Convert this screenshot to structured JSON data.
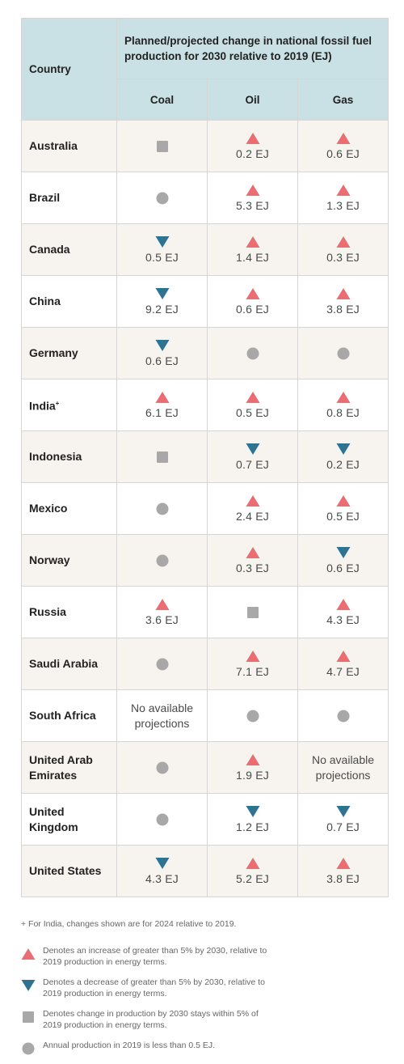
{
  "colors": {
    "increase": "#ec6d71",
    "decrease": "#2e7391",
    "within": "#a8a8a8",
    "low": "#a8a8a8",
    "header_bg": "#c9e0e4",
    "row_alt_bg": "#f7f3ee"
  },
  "header": {
    "country": "Country",
    "group": "Planned/projected change in national fossil fuel production for 2030 relative to 2019 (EJ)",
    "coal": "Coal",
    "oil": "Oil",
    "gas": "Gas"
  },
  "rows": [
    {
      "name": "Australia",
      "mark": "",
      "coal": {
        "sym": "square",
        "val": ""
      },
      "oil": {
        "sym": "up",
        "val": "0.2 EJ"
      },
      "gas": {
        "sym": "up",
        "val": "0.6 EJ"
      }
    },
    {
      "name": "Brazil",
      "mark": "",
      "coal": {
        "sym": "circle",
        "val": ""
      },
      "oil": {
        "sym": "up",
        "val": "5.3 EJ"
      },
      "gas": {
        "sym": "up",
        "val": "1.3 EJ"
      }
    },
    {
      "name": "Canada",
      "mark": "",
      "coal": {
        "sym": "down",
        "val": "0.5 EJ"
      },
      "oil": {
        "sym": "up",
        "val": "1.4 EJ"
      },
      "gas": {
        "sym": "up",
        "val": "0.3 EJ"
      }
    },
    {
      "name": "China",
      "mark": "",
      "coal": {
        "sym": "down",
        "val": "9.2 EJ"
      },
      "oil": {
        "sym": "up",
        "val": "0.6 EJ"
      },
      "gas": {
        "sym": "up",
        "val": "3.8 EJ"
      }
    },
    {
      "name": "Germany",
      "mark": "",
      "coal": {
        "sym": "down",
        "val": "0.6 EJ"
      },
      "oil": {
        "sym": "circle",
        "val": ""
      },
      "gas": {
        "sym": "circle",
        "val": ""
      }
    },
    {
      "name": "India",
      "mark": "+",
      "coal": {
        "sym": "up",
        "val": "6.1 EJ"
      },
      "oil": {
        "sym": "up",
        "val": "0.5 EJ"
      },
      "gas": {
        "sym": "up",
        "val": "0.8 EJ"
      }
    },
    {
      "name": "Indonesia",
      "mark": "",
      "coal": {
        "sym": "square",
        "val": ""
      },
      "oil": {
        "sym": "down",
        "val": "0.7 EJ"
      },
      "gas": {
        "sym": "down",
        "val": "0.2 EJ"
      }
    },
    {
      "name": "Mexico",
      "mark": "",
      "coal": {
        "sym": "circle",
        "val": ""
      },
      "oil": {
        "sym": "up",
        "val": "2.4 EJ"
      },
      "gas": {
        "sym": "up",
        "val": "0.5 EJ"
      }
    },
    {
      "name": "Norway",
      "mark": "",
      "coal": {
        "sym": "circle",
        "val": ""
      },
      "oil": {
        "sym": "up",
        "val": "0.3 EJ"
      },
      "gas": {
        "sym": "down",
        "val": "0.6 EJ"
      }
    },
    {
      "name": "Russia",
      "mark": "",
      "coal": {
        "sym": "up",
        "val": "3.6 EJ"
      },
      "oil": {
        "sym": "square",
        "val": ""
      },
      "gas": {
        "sym": "up",
        "val": "4.3 EJ"
      }
    },
    {
      "name": "Saudi Arabia",
      "mark": "",
      "coal": {
        "sym": "circle",
        "val": ""
      },
      "oil": {
        "sym": "up",
        "val": "7.1 EJ"
      },
      "gas": {
        "sym": "up",
        "val": "4.7 EJ"
      }
    },
    {
      "name": "South Africa",
      "mark": "",
      "coal": {
        "sym": "none",
        "val": "No available projections"
      },
      "oil": {
        "sym": "circle",
        "val": ""
      },
      "gas": {
        "sym": "circle",
        "val": ""
      }
    },
    {
      "name": "United Arab Emirates",
      "mark": "",
      "coal": {
        "sym": "circle",
        "val": ""
      },
      "oil": {
        "sym": "up",
        "val": "1.9 EJ"
      },
      "gas": {
        "sym": "none",
        "val": "No available projections"
      }
    },
    {
      "name": "United Kingdom",
      "mark": "",
      "coal": {
        "sym": "circle",
        "val": ""
      },
      "oil": {
        "sym": "down",
        "val": "1.2 EJ"
      },
      "gas": {
        "sym": "down",
        "val": "0.7 EJ"
      }
    },
    {
      "name": "United States",
      "mark": "",
      "coal": {
        "sym": "down",
        "val": "4.3 EJ"
      },
      "oil": {
        "sym": "up",
        "val": "5.2 EJ"
      },
      "gas": {
        "sym": "up",
        "val": "3.8 EJ"
      }
    }
  ],
  "footnote": "+ For India, changes shown are for 2024 relative to 2019.",
  "legend": [
    {
      "sym": "up",
      "icon": "triangle-up-icon",
      "text": "Denotes an increase of greater than 5% by 2030, relative to 2019 production in energy terms."
    },
    {
      "sym": "down",
      "icon": "triangle-down-icon",
      "text": "Denotes a decrease of greater than 5% by 2030, relative to 2019 production in energy terms."
    },
    {
      "sym": "square",
      "icon": "square-icon",
      "text": "Denotes change in production by 2030 stays within 5% of 2019 production in energy terms."
    },
    {
      "sym": "circle",
      "icon": "circle-icon",
      "text": "Annual production in 2019 is less than 0.5 EJ."
    }
  ]
}
